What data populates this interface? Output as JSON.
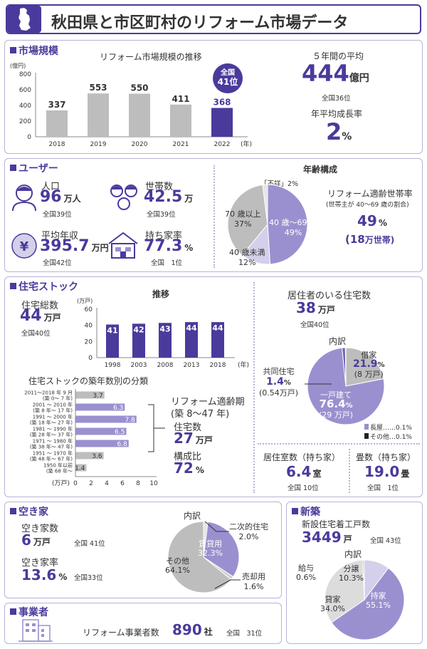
{
  "title": "秋田県と市区町村のリフォーム市場データ",
  "colors": {
    "accent": "#4a3a9c",
    "light": "#9b90cf",
    "lighter": "#d4cfea",
    "gray": "#bdbdbd"
  },
  "market": {
    "section": "市場規模",
    "chart_title": "リフォーム市場規模の推移",
    "unit": "(億円)",
    "xunit": "(年)",
    "badge_l1": "全国",
    "badge_l2": "41位",
    "avg_label": "５年間の平均",
    "avg_value": "444",
    "avg_unit": "億円",
    "avg_rank": "全国36位",
    "growth_label": "年平均成長率",
    "growth_value": "2",
    "growth_unit": "%"
  },
  "users": {
    "section": "ユーザー",
    "pop_label": "人口",
    "pop_value": "96",
    "pop_unit": "万人",
    "pop_rank": "全国39位",
    "hh_label": "世帯数",
    "hh_value": "42.5",
    "hh_unit": "万",
    "hh_rank": "全国39位",
    "income_label": "平均年収",
    "income_value": "395.7",
    "income_unit": "万円",
    "income_rank": "全国42位",
    "own_label": "持ち家率",
    "own_value": "77.3",
    "own_unit": "%",
    "own_rank": "全国　1位",
    "age_title": "年齢構成",
    "age_unknown": "「不詳」2%",
    "age_over70": "70 歳以上\n37%",
    "age_over70_a": "70 歳以上",
    "age_over70_b": "37%",
    "age_mid_a": "40 歳〜69 歳",
    "age_mid_b": "49%",
    "age_under_a": "40 歳未満",
    "age_under_b": "12%",
    "suit_label": "リフォーム適齢世帯率",
    "suit_sub": "(世帯主が 40〜69 歳の割合)",
    "suit_value": "49",
    "suit_unit": "%",
    "suit_hh_open": "(",
    "suit_hh_value": "18",
    "suit_hh_unit": "万世帯)"
  },
  "stock": {
    "section": "住宅ストック",
    "total_label": "住宅総数",
    "total_value": "44",
    "total_unit": "万戸",
    "total_rank": "全国40位",
    "trend_title": "推移",
    "trend_unit": "(万戸)",
    "trend_xunit": "(年)",
    "age_title": "住宅ストックの築年数別の分類",
    "age_xunit": "(万戸)",
    "reform_label_1": "リフォーム適齢期",
    "reform_label_2": "(築 8〜47 年)",
    "reform_count_label": "住宅数",
    "reform_count_value": "27",
    "reform_count_unit": "万戸",
    "reform_ratio_label": "構成比",
    "reform_ratio_value": "72",
    "reform_ratio_unit": "%",
    "occupied_label": "居住者のいる住宅数",
    "occupied_value": "38",
    "occupied_unit": "万戸",
    "occupied_rank": "全国40位",
    "breakdown_title": "内訳",
    "rent_label": "借家",
    "rent_value": "21.9",
    "rent_unit": "%",
    "rent_sub": "(8 万戸)",
    "apt_label": "共同住宅",
    "apt_value": "1.4",
    "apt_unit": "%",
    "apt_sub": "(0.54万戸)",
    "house_label": "一戸建て",
    "house_value": "76.4",
    "house_unit": "%",
    "house_sub": "(29 万戸)",
    "legend_long": "長屋……0.1%",
    "legend_other": "その他…0.1%",
    "rooms_label": "居住室数（持ち家）",
    "rooms_value": "6.4",
    "rooms_unit": "室",
    "rooms_rank": "全国 10位",
    "tatami_label": "畳数（持ち家）",
    "tatami_value": "19.0",
    "tatami_unit": "畳",
    "tatami_rank": "全国　1位"
  },
  "vacant": {
    "section": "空き家",
    "count_label": "空き家数",
    "count_value": "6",
    "count_unit": "万戸",
    "count_rank": "全国 41位",
    "rate_label": "空き家率",
    "rate_value": "13.6",
    "rate_unit": "%",
    "rate_rank": "全国33位",
    "breakdown_title": "内訳",
    "second_a": "二次的住宅",
    "second_b": "2.0%",
    "rental_a": "賃貸用",
    "rental_b": "32.3%",
    "other_a": "その他",
    "other_b": "64.1%",
    "sale_a": "売却用",
    "sale_b": "1.6%"
  },
  "business": {
    "section": "事業者",
    "label": "リフォーム事業者数",
    "value": "890",
    "unit": "社",
    "rank": "全国　31位"
  },
  "newbuild": {
    "section": "新築",
    "label": "新設住宅着工戸数",
    "value": "3449",
    "unit": "戸",
    "rank": "全国 43位",
    "breakdown_title": "内訳",
    "salary_a": "給与",
    "salary_b": "0.6%",
    "bunjo_a": "分譲",
    "bunjo_b": "10.3%",
    "rent_a": "貸家",
    "rent_b": "34.0%",
    "own_a": "持家",
    "own_b": "55.1%"
  },
  "chart_data": [
    {
      "type": "bar",
      "title": "リフォーム市場規模の推移",
      "categories": [
        "2018",
        "2019",
        "2020",
        "2021",
        "2022"
      ],
      "values": [
        337,
        553,
        550,
        411,
        368
      ],
      "yticks": [
        "0",
        "200",
        "400",
        "600",
        "800"
      ],
      "ylim": [
        0,
        800
      ]
    },
    {
      "type": "bar",
      "title": "推移",
      "categories": [
        "1998",
        "2003",
        "2008",
        "2013",
        "2018"
      ],
      "values": [
        41,
        42,
        43,
        44,
        44
      ],
      "yticks": [
        "0",
        "20",
        "40",
        "60"
      ],
      "ylim": [
        0,
        60
      ]
    },
    {
      "type": "bar",
      "orientation": "horizontal",
      "title": "住宅ストックの築年数別の分類",
      "categories": [
        [
          "2011〜2018 年 9 月",
          "(築 0〜 7 年)"
        ],
        [
          "2001 〜 2010 年",
          "(築 8 年〜 17 年)"
        ],
        [
          "1991 〜 2000 年",
          "(築 18 年〜 27 年)"
        ],
        [
          "1981 〜 1990 年",
          "(築 28 年〜 37 年)"
        ],
        [
          "1971 〜 1980 年",
          "(築 38 年〜 47 年)"
        ],
        [
          "1951 〜 1970 年",
          "(築 48 年〜 67 年)"
        ],
        [
          "1950 年以前",
          "(築 68 年〜"
        ]
      ],
      "values": [
        3.7,
        6.3,
        7.8,
        6.5,
        6.8,
        3.6,
        1.4
      ],
      "value_labels": [
        "3.7",
        "6.3",
        "7.8",
        "6.5",
        "6.8",
        "3.6",
        "1.4"
      ],
      "highlight": [
        false,
        true,
        true,
        true,
        true,
        false,
        false
      ],
      "xticks": [
        "0",
        "2",
        "4",
        "6",
        "8",
        "10"
      ],
      "xlim": [
        0,
        10
      ]
    },
    {
      "type": "pie",
      "title": "年齢構成",
      "labels": [
        "40 歳〜69 歳",
        "40 歳未満",
        "70 歳以上",
        "不詳"
      ],
      "values": [
        49,
        12,
        37,
        2
      ]
    },
    {
      "type": "pie",
      "title": "内訳",
      "labels": [
        "借家",
        "一戸建て",
        "共同住宅",
        "長屋",
        "その他"
      ],
      "values": [
        21.9,
        76.4,
        1.4,
        0.1,
        0.1
      ]
    },
    {
      "type": "pie",
      "title": "空き家 内訳",
      "labels": [
        "二次的住宅",
        "賃貸用",
        "売却用",
        "その他"
      ],
      "values": [
        2.0,
        32.3,
        1.6,
        64.1
      ]
    },
    {
      "type": "pie",
      "title": "新築 内訳",
      "labels": [
        "分譲",
        "持家",
        "貸家",
        "給与"
      ],
      "values": [
        10.3,
        55.1,
        34.0,
        0.6
      ]
    }
  ]
}
